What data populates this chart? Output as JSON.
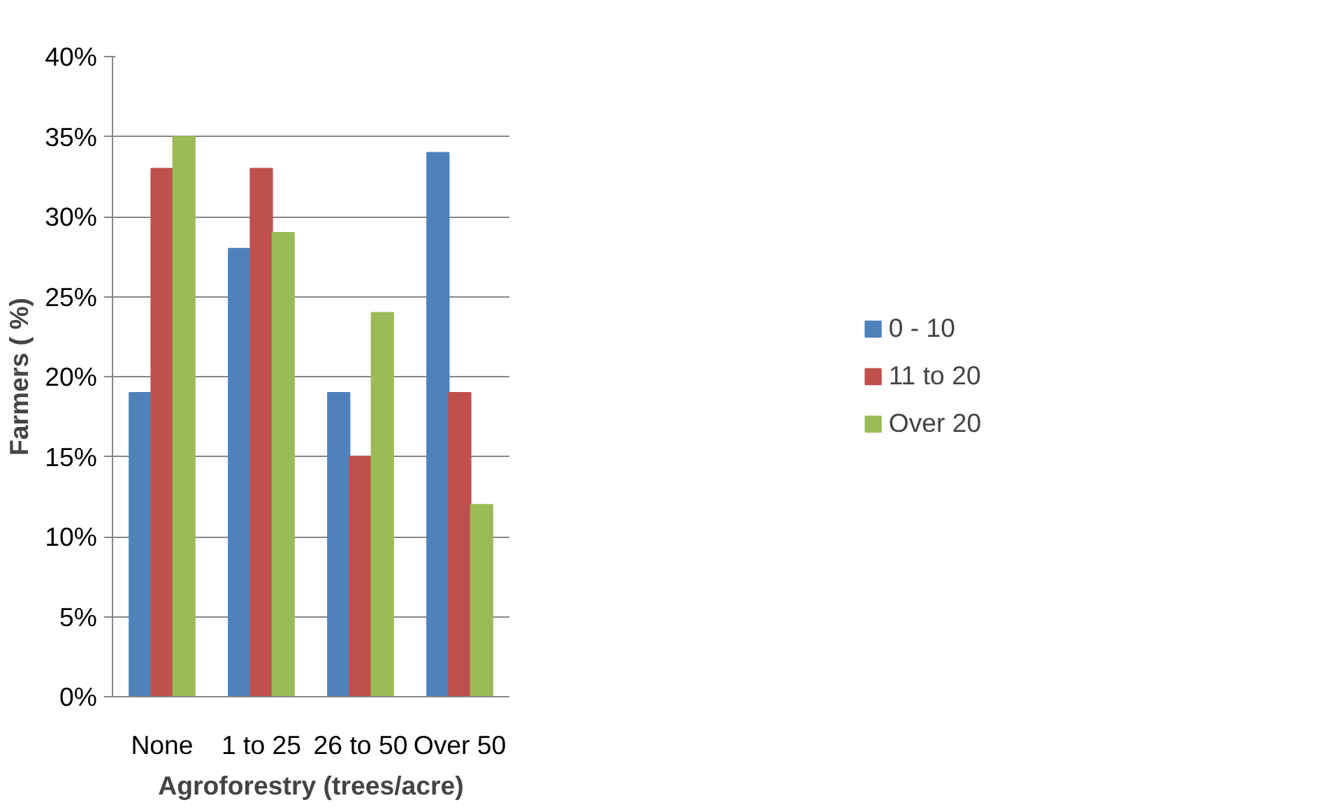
{
  "chart_data": {
    "type": "bar",
    "xlabel": "Agroforestry (trees/acre)",
    "ylabel": "Farmers ( %)",
    "categories": [
      "None",
      "1 to 25",
      "26 to 50",
      "Over 50"
    ],
    "series": [
      {
        "name": "0 - 10",
        "color": "#4f81bd",
        "values": [
          19,
          28,
          19,
          34
        ]
      },
      {
        "name": "11 to 20",
        "color": "#c0504d",
        "values": [
          33,
          33,
          15,
          19
        ]
      },
      {
        "name": "Over 20",
        "color": "#9bbb59",
        "values": [
          35,
          29,
          24,
          12
        ]
      }
    ],
    "ylim": [
      0,
      40
    ],
    "yticks": [
      {
        "value": 0,
        "label": "0%"
      },
      {
        "value": 5,
        "label": "5%"
      },
      {
        "value": 10,
        "label": "10%"
      },
      {
        "value": 15,
        "label": "15%"
      },
      {
        "value": 20,
        "label": "20%"
      },
      {
        "value": 25,
        "label": "25%"
      },
      {
        "value": 30,
        "label": "30%"
      },
      {
        "value": 35,
        "label": "35%"
      },
      {
        "value": 40,
        "label": "40%"
      }
    ],
    "grid": "y",
    "legend": "right"
  }
}
